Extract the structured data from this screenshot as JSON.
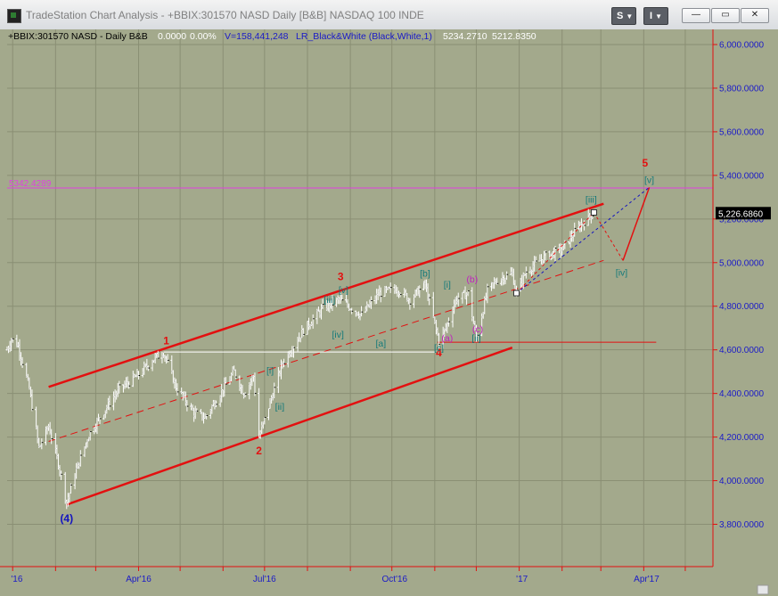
{
  "window": {
    "title": "TradeStation Chart Analysis - +BBIX:301570 NASD Daily [B&B] NASDAQ 100 INDE",
    "btn_s": "S",
    "btn_i": "I",
    "minimize": "—",
    "maximize": "▭",
    "close": "✕"
  },
  "header": {
    "symbol": "+BBIX:301570 NASD - Daily  B&B",
    "change": "0.0000",
    "change_pct": "0.00%",
    "volume": "V=158,441,248",
    "indicator": "LR_Black&White (Black,White,1)",
    "value1": "5234.2710",
    "value2": "5212.8350"
  },
  "colors": {
    "background": "#a3a98c",
    "grid": "#8a8f74",
    "axis_text": "#1a1ac8",
    "channel": "#e31010",
    "wave_red": "#e31010",
    "wave_blue": "#1212c0",
    "wave_teal": "#157a7a",
    "wave_magenta": "#c020c0",
    "reference_line": "#e040e0",
    "last_price_bg": "#000000"
  },
  "chart_data": {
    "type": "ohlc",
    "title": "",
    "ylim": [
      3650,
      6100
    ],
    "y_ticks": [
      3800,
      4000,
      4200,
      4400,
      4600,
      4800,
      5000,
      5200,
      5400,
      5600,
      5800,
      6000
    ],
    "y_tick_labels": [
      "3,800.0000",
      "4,000.0000",
      "4,200.0000",
      "4,400.0000",
      "4,600.0000",
      "4,800.0000",
      "5,000.0000",
      "5,200.0000",
      "5,400.0000",
      "5,600.0000",
      "5,800.0000",
      "6,000.0000"
    ],
    "x_tick_labels": [
      "'16",
      "Apr'16",
      "Jul'16",
      "Oct'16",
      "'17",
      "Apr'17"
    ],
    "x_tick_dates": [
      "2016-01-04",
      "2016-04-01",
      "2016-07-01",
      "2016-10-03",
      "2017-01-03",
      "2017-04-03"
    ],
    "price_path": [
      {
        "date": "2015-12-28",
        "price": 4600
      },
      {
        "date": "2015-12-31",
        "price": 4650
      },
      {
        "date": "2016-01-05",
        "price": 4620
      },
      {
        "date": "2016-01-13",
        "price": 4420
      },
      {
        "date": "2016-01-20",
        "price": 4150
      },
      {
        "date": "2016-01-27",
        "price": 4250
      },
      {
        "date": "2016-02-03",
        "price": 4080
      },
      {
        "date": "2016-02-09",
        "price": 3900
      },
      {
        "date": "2016-02-16",
        "price": 4050
      },
      {
        "date": "2016-02-25",
        "price": 4210
      },
      {
        "date": "2016-03-08",
        "price": 4330
      },
      {
        "date": "2016-03-18",
        "price": 4420
      },
      {
        "date": "2016-03-31",
        "price": 4480
      },
      {
        "date": "2016-04-12",
        "price": 4560
      },
      {
        "date": "2016-04-19",
        "price": 4590
      },
      {
        "date": "2016-04-28",
        "price": 4430
      },
      {
        "date": "2016-05-11",
        "price": 4310
      },
      {
        "date": "2016-05-19",
        "price": 4290
      },
      {
        "date": "2016-06-01",
        "price": 4420
      },
      {
        "date": "2016-06-09",
        "price": 4500
      },
      {
        "date": "2016-06-16",
        "price": 4400
      },
      {
        "date": "2016-06-23",
        "price": 4480
      },
      {
        "date": "2016-06-27",
        "price": 4200
      },
      {
        "date": "2016-07-06",
        "price": 4380
      },
      {
        "date": "2016-07-14",
        "price": 4540
      },
      {
        "date": "2016-07-29",
        "price": 4690
      },
      {
        "date": "2016-08-12",
        "price": 4790
      },
      {
        "date": "2016-08-24",
        "price": 4830
      },
      {
        "date": "2016-09-09",
        "price": 4760
      },
      {
        "date": "2016-09-22",
        "price": 4860
      },
      {
        "date": "2016-10-05",
        "price": 4880
      },
      {
        "date": "2016-10-14",
        "price": 4830
      },
      {
        "date": "2016-10-25",
        "price": 4900
      },
      {
        "date": "2016-11-04",
        "price": 4640
      },
      {
        "date": "2016-11-09",
        "price": 4700
      },
      {
        "date": "2016-11-16",
        "price": 4830
      },
      {
        "date": "2016-11-25",
        "price": 4860
      },
      {
        "date": "2016-12-01",
        "price": 4650
      },
      {
        "date": "2016-12-09",
        "price": 4870
      },
      {
        "date": "2016-12-16",
        "price": 4920
      },
      {
        "date": "2016-12-27",
        "price": 4950
      },
      {
        "date": "2016-12-30",
        "price": 4860
      },
      {
        "date": "2017-01-06",
        "price": 4960
      },
      {
        "date": "2017-01-20",
        "price": 5030
      },
      {
        "date": "2017-02-01",
        "price": 5060
      },
      {
        "date": "2017-02-10",
        "price": 5140
      },
      {
        "date": "2017-02-17",
        "price": 5190
      },
      {
        "date": "2017-02-24",
        "price": 5230
      }
    ],
    "channel_lines": [
      {
        "name": "upper",
        "from": {
          "date": "2016-01-27",
          "price": 4430
        },
        "to": {
          "date": "2017-03-03",
          "price": 5270
        }
      },
      {
        "name": "middle",
        "from": {
          "date": "2016-01-27",
          "price": 4180
        },
        "to": {
          "date": "2017-03-03",
          "price": 5010
        }
      },
      {
        "name": "lower",
        "from": {
          "date": "2016-02-09",
          "price": 3890
        },
        "to": {
          "date": "2016-12-27",
          "price": 4610
        }
      }
    ],
    "horizontal_lines": [
      {
        "price": 5342.4289,
        "label": "5342.4289",
        "color": "#e040e0"
      },
      {
        "price": 4590,
        "from": "2016-04-19",
        "to": "2016-11-01",
        "color": "#ffffff"
      },
      {
        "price": 4635,
        "from": "2016-11-03",
        "to": "2017-04-10",
        "color": "#e31010"
      }
    ],
    "projection": {
      "red_path": [
        {
          "date": "2017-02-24",
          "price": 5230
        },
        {
          "date": "2017-03-17",
          "price": 5010
        },
        {
          "date": "2017-04-05",
          "price": 5345
        }
      ],
      "blue_path": [
        {
          "date": "2016-12-30",
          "price": 4860
        },
        {
          "date": "2017-04-05",
          "price": 5345
        }
      ]
    },
    "wave_labels": [
      {
        "text": "(4)",
        "date": "2016-02-09",
        "price": 3810,
        "color": "blue"
      },
      {
        "text": "1",
        "date": "2016-04-21",
        "price": 4625,
        "color": "red"
      },
      {
        "text": "2",
        "date": "2016-06-27",
        "price": 4120,
        "color": "red"
      },
      {
        "text": "3",
        "date": "2016-08-25",
        "price": 4920,
        "color": "red"
      },
      {
        "text": "4",
        "date": "2016-11-04",
        "price": 4570,
        "color": "red"
      },
      {
        "text": "5",
        "date": "2017-04-02",
        "price": 5440,
        "color": "red"
      },
      {
        "text": "[i]",
        "date": "2016-07-05",
        "price": 4490,
        "color": "teal"
      },
      {
        "text": "[ii]",
        "date": "2016-07-12",
        "price": 4325,
        "color": "teal"
      },
      {
        "text": "[iii]",
        "date": "2016-08-17",
        "price": 4815,
        "color": "teal"
      },
      {
        "text": "[v]",
        "date": "2016-08-27",
        "price": 4860,
        "color": "teal"
      },
      {
        "text": "[iv]",
        "date": "2016-08-23",
        "price": 4655,
        "color": "teal"
      },
      {
        "text": "[a]",
        "date": "2016-09-23",
        "price": 4615,
        "color": "teal"
      },
      {
        "text": "[b]",
        "date": "2016-10-25",
        "price": 4935,
        "color": "teal"
      },
      {
        "text": "[c]",
        "date": "2016-11-04",
        "price": 4595,
        "color": "teal"
      },
      {
        "text": "[i]",
        "date": "2016-11-10",
        "price": 4885,
        "color": "teal"
      },
      {
        "text": "[ii]",
        "date": "2016-12-01",
        "price": 4640,
        "color": "teal"
      },
      {
        "text": "[iii]",
        "date": "2017-02-22",
        "price": 5275,
        "color": "teal"
      },
      {
        "text": "[iv]",
        "date": "2017-03-16",
        "price": 4940,
        "color": "teal"
      },
      {
        "text": "[v]",
        "date": "2017-04-05",
        "price": 5365,
        "color": "teal"
      },
      {
        "text": "(a)",
        "date": "2016-11-10",
        "price": 4640,
        "color": "magenta"
      },
      {
        "text": "(b)",
        "date": "2016-11-28",
        "price": 4910,
        "color": "magenta"
      },
      {
        "text": "(c)",
        "date": "2016-12-02",
        "price": 4680,
        "color": "magenta"
      }
    ],
    "last_price_label": "5,226.6860",
    "last_price": 5226.686,
    "xlabel": "",
    "ylabel": ""
  }
}
